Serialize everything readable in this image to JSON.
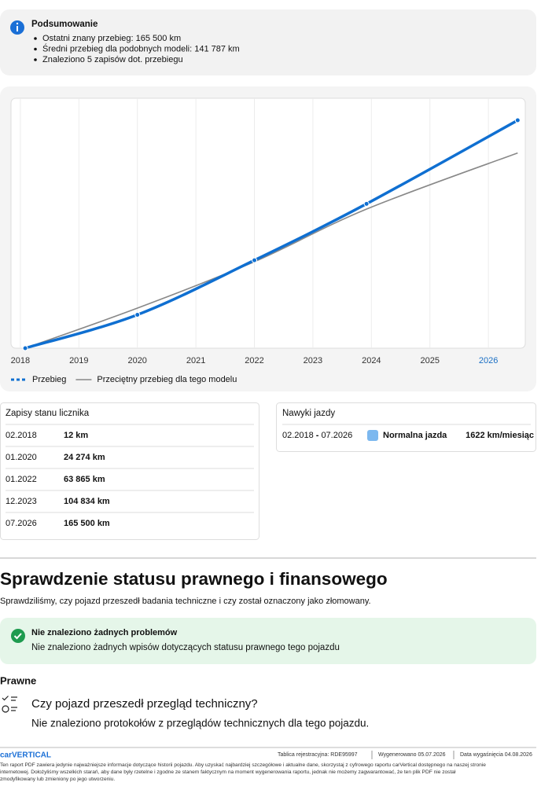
{
  "summary": {
    "title": "Podsumowanie",
    "items": [
      "Ostatni znany przebieg: 165 500 km",
      "Średni przebieg dla podobnych modeli: 141 787 km",
      "Znaleziono 5 zapisów dot. przebiegu"
    ]
  },
  "chart_data": {
    "type": "line",
    "x": [
      "02.2018",
      "01.2020",
      "01.2022",
      "12.2023",
      "07.2026"
    ],
    "series": [
      {
        "name": "Przebieg",
        "color": "#0f6fd1",
        "values": [
          12,
          24274,
          63865,
          104834,
          165500
        ]
      },
      {
        "name": "Przeciętny przebieg dla tego modelu",
        "color": "#888888",
        "values": [
          12,
          29100,
          62800,
          101000,
          141787
        ]
      }
    ],
    "xlim": [
      2017.84,
      2026.63
    ],
    "xticks": [
      2018,
      2019,
      2020,
      2021,
      2022,
      2023,
      2024,
      2025,
      2026
    ],
    "ylim": [
      0,
      181500
    ],
    "grid": true
  },
  "odometer": {
    "title": "Zapisy stanu licznika",
    "rows": [
      [
        "02.2018",
        "12 km"
      ],
      [
        "01.2020",
        "24 274 km"
      ],
      [
        "01.2022",
        "63 865 km"
      ],
      [
        "12.2023",
        "104 834 km"
      ],
      [
        "07.2026",
        "165 500 km"
      ]
    ]
  },
  "driving": {
    "title": "Nawyki jazdy",
    "period_start": "02.2018",
    "separator": "-",
    "period_end": "07.2026",
    "label": "Normalna jazda",
    "value": "1622 km/miesiąc"
  },
  "legal": {
    "title": "Sprawdzenie statusu prawnego i finansowego",
    "subtitle": "Sprawdziliśmy, czy pojazd przeszedł badania techniczne i czy został oznaczony jako złomowany.",
    "status_title": "Nie znaleziono żadnych problemów",
    "status_text": "Nie znaleziono żadnych wpisów dotyczących statusu prawnego tego pojazdu",
    "section": "Prawne",
    "question": "Czy pojazd przeszedł przegląd techniczny?",
    "answer": "Nie znaleziono protokołów z przeglądów technicznych dla tego pojazdu."
  },
  "footer": {
    "logo": "carVERTICAL",
    "plate": "Tablica rejestracyjna: RDE95997",
    "generated": "Wygenerowano 05.07.2026",
    "expires": "Data wygaśnięcia 04.08.2026",
    "disclaimer": [
      "Ten raport PDF zawiera jedynie najważniejsze informacje dotyczące historii pojazdu. Aby uzyskać najbardziej szczegółowe i aktualne dane, skorzystaj z cyfrowego raportu carVertical dostępnego na naszej stronie",
      "internetowej. Dołożyliśmy wszelkich starań, aby dane były rzetelne i zgodne ze stanem faktycznym na moment wygenerowania raportu, jednak nie możemy zagwarantować, że ten plik PDF nie został",
      "zmodyfikowany lub zmieniony po jego utworzeniu."
    ]
  }
}
